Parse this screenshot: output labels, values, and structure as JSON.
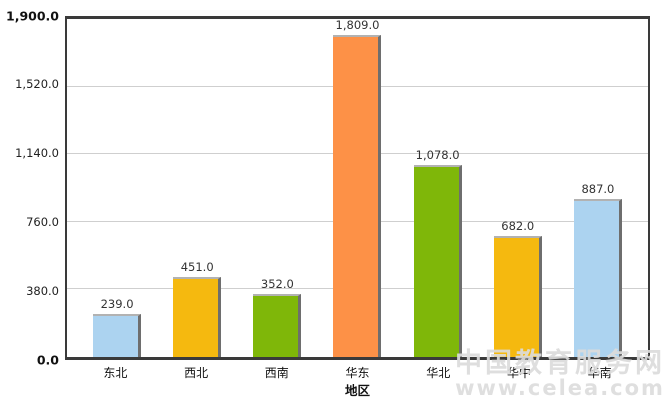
{
  "chart_data": {
    "type": "bar",
    "title": "",
    "xlabel": "地区",
    "ylabel": "",
    "categories": [
      "东北",
      "西北",
      "西南",
      "华东",
      "华北",
      "华中",
      "华南"
    ],
    "values": [
      239,
      451,
      352,
      1809,
      1078,
      682,
      887
    ],
    "value_labels": [
      "239.0",
      "451.0",
      "352.0",
      "1,809.0",
      "1,078.0",
      "682.0",
      "887.0"
    ],
    "bar_colors": [
      "#ACD3F0",
      "#F5B90F",
      "#7FB709",
      "#FD9147",
      "#7FB709",
      "#F5B90F",
      "#ACD3F0"
    ],
    "ylim": [
      0,
      1900
    ],
    "yticks": [
      {
        "label": "0.0",
        "bold": true
      },
      {
        "label": "380.0",
        "bold": false
      },
      {
        "label": "760.0",
        "bold": false
      },
      {
        "label": "1,140.0",
        "bold": false
      },
      {
        "label": "1,520.0",
        "bold": false
      },
      {
        "label": "1,900.0",
        "bold": true
      }
    ],
    "grid": true,
    "legend": false
  },
  "watermark": {
    "line1": "中国教育服务网",
    "line2": "www.celea.com"
  },
  "colors": {
    "axis_border": "#3a3a3a",
    "gridline": "#cfcfcf",
    "value_label": "#333333",
    "bar_shadow_top": "#b2b2b2",
    "bar_shadow_right": "#6e6e6e",
    "watermark": "#dbdbdb",
    "background": "#ffffff"
  }
}
